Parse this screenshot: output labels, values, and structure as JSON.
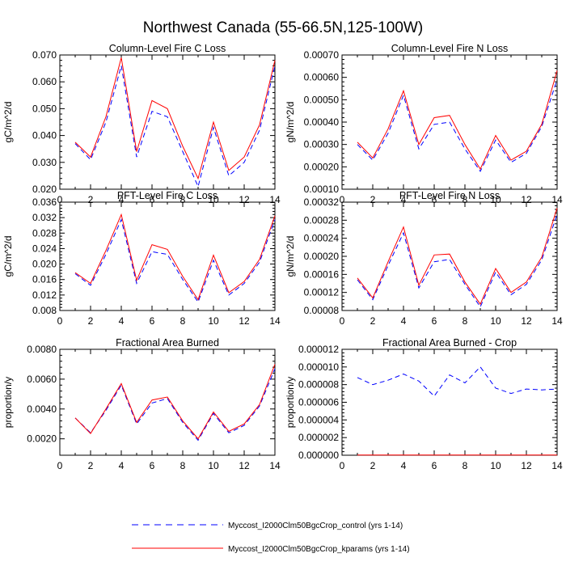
{
  "figure_title": "Northwest Canada (55-66.5N,125-100W)",
  "chart_data": [
    {
      "type": "line",
      "title": "Column-Level Fire C Loss",
      "xlabel": "",
      "ylabel": "gC/m^2/d",
      "x": [
        1,
        2,
        3,
        4,
        5,
        6,
        7,
        8,
        9,
        10,
        11,
        12,
        13,
        14
      ],
      "xlim": [
        0,
        14
      ],
      "xticks": [
        "0",
        "2",
        "4",
        "6",
        "8",
        "10",
        "12",
        "14"
      ],
      "ylim": [
        0.02,
        0.07
      ],
      "yticks": [
        "0.020",
        "0.030",
        "0.040",
        "0.050",
        "0.060",
        "0.070"
      ],
      "series": [
        {
          "name": "Myccost_I2000Clm50BgcCrop_control (yrs 1-14)",
          "color": "#0000ff",
          "style": "dashed",
          "values": [
            0.037,
            0.031,
            0.045,
            0.066,
            0.032,
            0.049,
            0.047,
            0.034,
            0.021,
            0.043,
            0.025,
            0.03,
            0.042,
            0.066
          ]
        },
        {
          "name": "Myccost_I2000Clm50BgcCrop_kparams (yrs 1-14)",
          "color": "#ff0000",
          "style": "solid",
          "values": [
            0.0375,
            0.032,
            0.047,
            0.069,
            0.034,
            0.053,
            0.05,
            0.036,
            0.024,
            0.045,
            0.027,
            0.032,
            0.044,
            0.068
          ]
        }
      ]
    },
    {
      "type": "line",
      "title": "Column-Level Fire N Loss",
      "xlabel": "",
      "ylabel": "gN/m^2/d",
      "x": [
        1,
        2,
        3,
        4,
        5,
        6,
        7,
        8,
        9,
        10,
        11,
        12,
        13,
        14
      ],
      "xlim": [
        0,
        14
      ],
      "xticks": [
        "0",
        "2",
        "4",
        "6",
        "8",
        "10",
        "12",
        "14"
      ],
      "ylim": [
        0.0001,
        0.0007
      ],
      "yticks": [
        "0.00010",
        "0.00020",
        "0.00030",
        "0.00040",
        "0.00050",
        "0.00060",
        "0.00070"
      ],
      "series": [
        {
          "name": "Myccost_I2000Clm50BgcCrop_control (yrs 1-14)",
          "color": "#0000ff",
          "style": "dashed",
          "values": [
            0.0003,
            0.00023,
            0.00035,
            0.00052,
            0.00028,
            0.00039,
            0.0004,
            0.00028,
            0.00018,
            0.00032,
            0.00022,
            0.00026,
            0.00038,
            0.00059
          ]
        },
        {
          "name": "Myccost_I2000Clm50BgcCrop_kparams (yrs 1-14)",
          "color": "#ff0000",
          "style": "solid",
          "values": [
            0.00031,
            0.00024,
            0.00037,
            0.00054,
            0.0003,
            0.00042,
            0.00043,
            0.0003,
            0.00019,
            0.00034,
            0.00023,
            0.00027,
            0.00039,
            0.00063
          ]
        }
      ]
    },
    {
      "type": "line",
      "title": "PFT-Level Fire C Loss",
      "xlabel": "",
      "ylabel": "gC/m^2/d",
      "x": [
        1,
        2,
        3,
        4,
        5,
        6,
        7,
        8,
        9,
        10,
        11,
        12,
        13,
        14
      ],
      "xlim": [
        0,
        14
      ],
      "xticks": [
        "0",
        "2",
        "4",
        "6",
        "8",
        "10",
        "12",
        "14"
      ],
      "ylim": [
        0.008,
        0.036
      ],
      "yticks": [
        "0.008",
        "0.012",
        "0.016",
        "0.020",
        "0.024",
        "0.028",
        "0.032",
        "0.036"
      ],
      "series": [
        {
          "name": "Myccost_I2000Clm50BgcCrop_control (yrs 1-14)",
          "color": "#0000ff",
          "style": "dashed",
          "values": [
            0.0175,
            0.0145,
            0.0225,
            0.0315,
            0.015,
            0.0232,
            0.0225,
            0.016,
            0.0102,
            0.021,
            0.012,
            0.015,
            0.0205,
            0.0315
          ]
        },
        {
          "name": "Myccost_I2000Clm50BgcCrop_kparams (yrs 1-14)",
          "color": "#ff0000",
          "style": "solid",
          "values": [
            0.0178,
            0.015,
            0.0235,
            0.0328,
            0.0158,
            0.025,
            0.0238,
            0.0168,
            0.0108,
            0.0223,
            0.0126,
            0.0155,
            0.0212,
            0.0325
          ]
        }
      ]
    },
    {
      "type": "line",
      "title": "PFT-Level Fire N Loss",
      "xlabel": "",
      "ylabel": "gN/m^2/d",
      "x": [
        1,
        2,
        3,
        4,
        5,
        6,
        7,
        8,
        9,
        10,
        11,
        12,
        13,
        14
      ],
      "xlim": [
        0,
        14
      ],
      "xticks": [
        "0",
        "2",
        "4",
        "6",
        "8",
        "10",
        "12",
        "14"
      ],
      "ylim": [
        8e-05,
        0.00032
      ],
      "yticks": [
        "0.00008",
        "0.00012",
        "0.00016",
        "0.00020",
        "0.00024",
        "0.00028",
        "0.00032"
      ],
      "series": [
        {
          "name": "Myccost_I2000Clm50BgcCrop_control (yrs 1-14)",
          "color": "#0000ff",
          "style": "dashed",
          "values": [
            0.000148,
            0.000104,
            0.00018,
            0.000252,
            0.00013,
            0.000188,
            0.000193,
            0.000138,
            8.8e-05,
            0.000165,
            0.000115,
            0.000138,
            0.000192,
            0.000293
          ]
        },
        {
          "name": "Myccost_I2000Clm50BgcCrop_kparams (yrs 1-14)",
          "color": "#ff0000",
          "style": "solid",
          "values": [
            0.000152,
            0.000108,
            0.000188,
            0.000265,
            0.000136,
            0.000203,
            0.000205,
            0.000143,
            9.4e-05,
            0.000173,
            0.00012,
            0.000143,
            0.000198,
            0.000307
          ]
        }
      ]
    },
    {
      "type": "line",
      "title": "Fractional Area Burned",
      "xlabel": "",
      "ylabel": "proportion/y",
      "x": [
        1,
        2,
        3,
        4,
        5,
        6,
        7,
        8,
        9,
        10,
        11,
        12,
        13,
        14
      ],
      "xlim": [
        0,
        14
      ],
      "xticks": [
        "0",
        "2",
        "4",
        "6",
        "8",
        "10",
        "12",
        "14"
      ],
      "ylim": [
        0.0009,
        0.008
      ],
      "yticks": [
        "0.0020",
        "0.0040",
        "0.0060",
        "0.0080"
      ],
      "ytickvals": [
        0.002,
        0.004,
        0.006,
        0.008
      ],
      "series": [
        {
          "name": "Myccost_I2000Clm50BgcCrop_control (yrs 1-14)",
          "color": "#0000ff",
          "style": "dashed",
          "values": [
            0.0034,
            0.0024,
            0.0039,
            0.0056,
            0.003,
            0.0044,
            0.0047,
            0.0031,
            0.0019,
            0.0037,
            0.0024,
            0.0029,
            0.0042,
            0.0067
          ]
        },
        {
          "name": "Myccost_I2000Clm50BgcCrop_kparams (yrs 1-14)",
          "color": "#ff0000",
          "style": "solid",
          "values": [
            0.0034,
            0.00235,
            0.004,
            0.0057,
            0.0031,
            0.0046,
            0.0048,
            0.0032,
            0.002,
            0.0038,
            0.0025,
            0.003,
            0.0043,
            0.007
          ]
        }
      ]
    },
    {
      "type": "line",
      "title": "Fractional Area Burned - Crop",
      "xlabel": "",
      "ylabel": "proportion/y",
      "x": [
        1,
        2,
        3,
        4,
        5,
        6,
        7,
        8,
        9,
        10,
        11,
        12,
        13,
        14
      ],
      "xlim": [
        0,
        14
      ],
      "xticks": [
        "0",
        "2",
        "4",
        "6",
        "8",
        "10",
        "12",
        "14"
      ],
      "ylim": [
        0,
        1.2e-05
      ],
      "yticks": [
        "0.000000",
        "0.000002",
        "0.000004",
        "0.000006",
        "0.000008",
        "0.000010",
        "0.000012"
      ],
      "series": [
        {
          "name": "Myccost_I2000Clm50BgcCrop_control (yrs 1-14)",
          "color": "#0000ff",
          "style": "dashed",
          "values": [
            8.8e-06,
            8e-06,
            8.5e-06,
            9.2e-06,
            8.4e-06,
            6.7e-06,
            9.1e-06,
            8.2e-06,
            1e-05,
            7.6e-06,
            7e-06,
            7.5e-06,
            7.4e-06,
            7.5e-06
          ]
        },
        {
          "name": "Myccost_I2000Clm50BgcCrop_kparams (yrs 1-14)",
          "color": "#ff0000",
          "style": "solid",
          "values": [
            2e-08,
            2e-08,
            2e-08,
            2e-08,
            2e-08,
            2e-08,
            2e-08,
            2e-08,
            2e-08,
            2e-08,
            2e-08,
            2e-08,
            2e-08,
            2e-08
          ]
        }
      ]
    }
  ],
  "legend": {
    "entries": [
      {
        "label": "Myccost_I2000Clm50BgcCrop_control (yrs 1-14)",
        "color": "#0000ff",
        "style": "dashed"
      },
      {
        "label": "Myccost_I2000Clm50BgcCrop_kparams (yrs 1-14)",
        "color": "#ff0000",
        "style": "solid"
      }
    ]
  }
}
